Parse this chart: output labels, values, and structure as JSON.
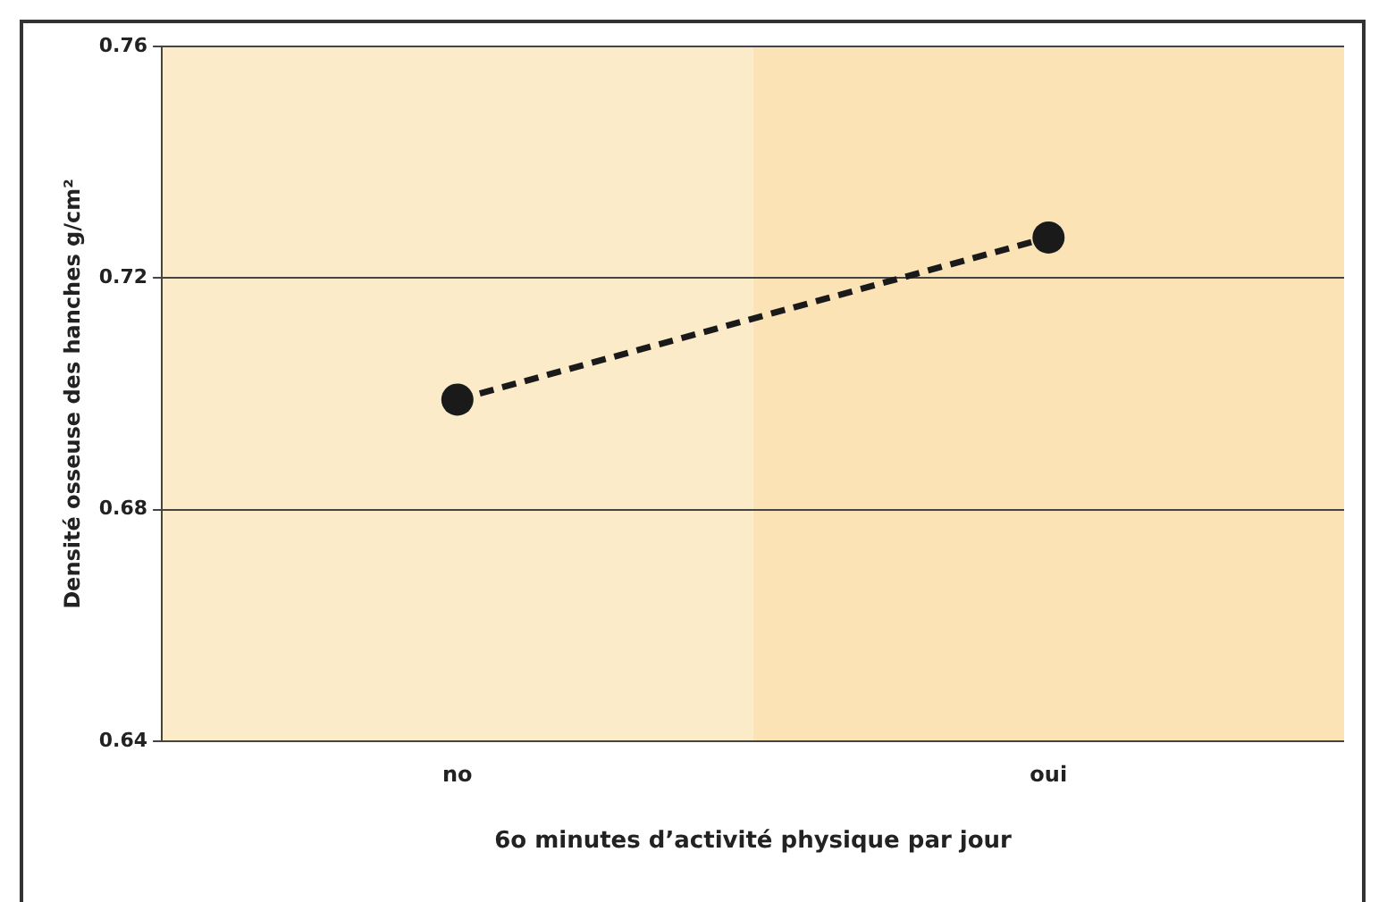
{
  "chart_data": {
    "type": "line",
    "xlabel": "6o minutes d’activité physique par jour",
    "ylabel": "Densité osseuse des hanches g/cm²",
    "categories": [
      "no",
      "oui"
    ],
    "series": [
      {
        "color": "#1a1a1a",
        "values": [
          0.699,
          0.727
        ]
      }
    ],
    "bands": [
      {
        "axis": "x",
        "from": "no",
        "to": "no",
        "color": "#fcebc8"
      },
      {
        "axis": "x",
        "from": "oui",
        "to": "oui",
        "color": "#fbe3b6"
      }
    ],
    "ylim": [
      0.64,
      0.76
    ],
    "yticks": [
      0.64,
      0.68,
      0.72,
      0.76
    ],
    "grid": "y",
    "legend": false,
    "marker": "circle",
    "line_style": "dashed"
  }
}
